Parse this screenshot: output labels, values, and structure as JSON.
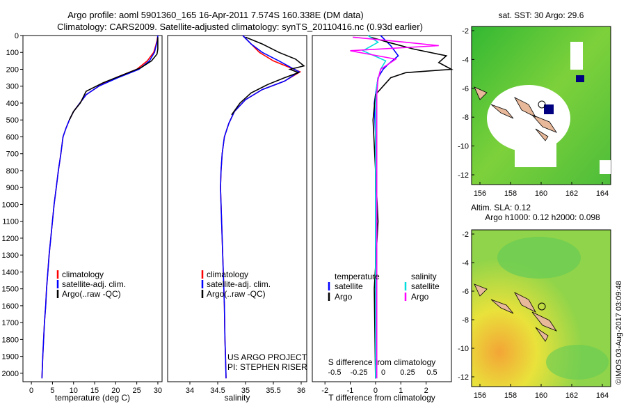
{
  "header": {
    "line1": "Argo profile: aoml 5901360_165 16-Apr-2011 7.574S 160.338E (DM data)",
    "line2": "Climatology: CARS2009. Satellite-adjusted climatology: synTS_20110416.nc (0.93d earlier)"
  },
  "colors": {
    "climatology": "#ff0000",
    "satellite": "#0000ff",
    "argo": "#000000",
    "sal_satellite": "#00dddd",
    "sal_argo": "#ff00ff",
    "land": "#e8b89a"
  },
  "chart_data": [
    {
      "type": "line",
      "xlabel": "temperature (deg C)",
      "ylabel": "",
      "xlim": [
        -2,
        31
      ],
      "ylim": [
        2050,
        0
      ],
      "xticks": [
        0,
        5,
        10,
        15,
        20,
        25,
        30
      ],
      "yticks": [
        0,
        100,
        200,
        300,
        400,
        500,
        600,
        700,
        800,
        900,
        1000,
        1100,
        1200,
        1300,
        1400,
        1500,
        1600,
        1700,
        1800,
        1900,
        2000
      ],
      "legend": [
        "climatology",
        "satellite-adj. clim.",
        "Argo(..raw -QC)"
      ],
      "legend_position": "lower-center",
      "series": [
        {
          "name": "climatology",
          "color": "#ff0000",
          "x": [
            30,
            29.8,
            29.5,
            29,
            27.5,
            25,
            20,
            16,
            13,
            11.5,
            10,
            9,
            8.2,
            7.5,
            7,
            6.4,
            5.9,
            5.4,
            5,
            4.6,
            4.2,
            3.9,
            3.6,
            3.4,
            3.1,
            2.9,
            2.7,
            2.5
          ],
          "y": [
            0,
            30,
            60,
            100,
            150,
            200,
            250,
            300,
            350,
            400,
            450,
            500,
            550,
            600,
            700,
            800,
            900,
            1000,
            1100,
            1200,
            1300,
            1400,
            1500,
            1600,
            1700,
            1800,
            1900,
            2030
          ]
        },
        {
          "name": "satellite-adj. clim.",
          "color": "#0000ff",
          "x": [
            30,
            29.9,
            29.6,
            29.2,
            28,
            25.5,
            20.5,
            16,
            13,
            11.5,
            10,
            9,
            8.2,
            7.5,
            7,
            6.4,
            5.9,
            5.4,
            5,
            4.6,
            4.2,
            3.9,
            3.6,
            3.4,
            3.1,
            2.9,
            2.7,
            2.5
          ],
          "y": [
            0,
            30,
            60,
            100,
            150,
            200,
            250,
            300,
            350,
            400,
            450,
            500,
            550,
            600,
            700,
            800,
            900,
            1000,
            1100,
            1200,
            1300,
            1400,
            1500,
            1600,
            1700,
            1800,
            1900,
            2030
          ]
        },
        {
          "name": "Argo(..raw -QC)",
          "color": "#000000",
          "x": [
            30,
            30,
            30,
            29.8,
            28.5,
            26,
            22,
            17,
            13,
            11.6,
            10,
            9
          ],
          "y": [
            10,
            40,
            80,
            110,
            150,
            190,
            230,
            280,
            330,
            400,
            450,
            500
          ]
        }
      ]
    },
    {
      "type": "line",
      "xlabel": "salinity",
      "xlim": [
        33.6,
        36.1
      ],
      "ylim": [
        2050,
        0
      ],
      "xticks": [
        34,
        34.5,
        35,
        35.5,
        36
      ],
      "legend": [
        "climatology",
        "satellite-adj. clim.",
        "Argo(..raw -QC)"
      ],
      "legend_position": "lower-center",
      "series": [
        {
          "name": "climatology",
          "color": "#ff0000",
          "x": [
            34.95,
            35.1,
            35.25,
            35.5,
            35.8,
            35.98,
            35.7,
            35.3,
            35.0,
            34.8,
            34.7,
            34.62,
            34.58,
            34.56,
            34.55,
            34.56,
            34.57,
            34.58,
            34.6,
            34.61,
            34.62,
            34.63,
            34.64,
            34.65
          ],
          "y": [
            0,
            50,
            100,
            150,
            190,
            215,
            270,
            320,
            380,
            450,
            520,
            600,
            700,
            800,
            900,
            1000,
            1100,
            1200,
            1400,
            1500,
            1600,
            1800,
            1900,
            2030
          ]
        },
        {
          "name": "satellite-adj. clim.",
          "color": "#0000ff",
          "x": [
            34.95,
            35.1,
            35.3,
            35.6,
            35.82,
            35.96,
            35.7,
            35.3,
            35.0,
            34.8,
            34.7,
            34.62,
            34.58,
            34.56,
            34.55,
            34.56,
            34.57,
            34.58,
            34.6,
            34.61,
            34.62,
            34.63,
            34.64,
            34.65
          ],
          "y": [
            0,
            50,
            100,
            150,
            190,
            215,
            270,
            320,
            380,
            450,
            520,
            600,
            700,
            800,
            900,
            1000,
            1100,
            1200,
            1400,
            1500,
            1600,
            1800,
            1900,
            2030
          ]
        },
        {
          "name": "Argo(..raw -QC)",
          "color": "#000000",
          "x": [
            35.0,
            35.3,
            35.6,
            35.9,
            36.05,
            35.8,
            35.95,
            35.7,
            35.4,
            35.1,
            34.9,
            34.75
          ],
          "y": [
            10,
            50,
            100,
            140,
            180,
            200,
            220,
            250,
            290,
            340,
            400,
            470
          ]
        }
      ]
    },
    {
      "type": "line",
      "xlabel": "T difference from climatology",
      "xlabel_top": "S difference from climatology",
      "xlim": [
        -2.5,
        3.0
      ],
      "ylim": [
        2050,
        0
      ],
      "xticks": [
        -2,
        -1,
        0,
        1,
        2
      ],
      "xticks_top": [
        -0.5,
        -0.25,
        0,
        0.25,
        0.5
      ],
      "legend_groups": [
        {
          "title": "temperature",
          "items": [
            "satellite",
            "Argo"
          ]
        },
        {
          "title": "salinity",
          "items": [
            "satellite",
            "Argo"
          ]
        }
      ],
      "legend_position": "lower-center",
      "series": [
        {
          "name": "satellite",
          "color": "#0000ff",
          "x": [
            0.2,
            0.6,
            0.9,
            0.5,
            0.3,
            0.1,
            0.05,
            0,
            -0.05,
            0,
            0,
            0,
            0
          ],
          "y": [
            0,
            60,
            120,
            170,
            200,
            250,
            300,
            350,
            400,
            600,
            900,
            1400,
            2030
          ]
        },
        {
          "name": "Argo",
          "color": "#000000",
          "x": [
            -0.2,
            0.5,
            1.5,
            2.8,
            2.5,
            3.0,
            1.2,
            0.6,
            0.3,
            0,
            -0.1,
            0,
            0.1,
            -0.05,
            0
          ],
          "y": [
            10,
            40,
            80,
            120,
            160,
            200,
            220,
            250,
            300,
            350,
            500,
            800,
            1100,
            1500,
            2030
          ]
        },
        {
          "name": "salinity satellite",
          "color": "#00dddd",
          "x": [
            -0.3,
            0.1,
            -0.5,
            0.4,
            0.2,
            0.1,
            0.05,
            0,
            0,
            0,
            0
          ],
          "y": [
            0,
            40,
            90,
            150,
            200,
            260,
            300,
            400,
            800,
            1400,
            2030
          ]
        },
        {
          "name": "salinity Argo",
          "color": "#ff00ff",
          "x": [
            -0.9,
            1.2,
            2.5,
            -1.0,
            0.8,
            0.2,
            0.1,
            0.05,
            0.05,
            0.05,
            0.05
          ],
          "y": [
            10,
            40,
            60,
            90,
            140,
            200,
            260,
            350,
            800,
            1400,
            2030
          ]
        }
      ]
    }
  ],
  "annotations": {
    "project": "US ARGO PROJECT",
    "pi": "PI: STEPHEN RISER"
  },
  "maps": [
    {
      "title": "sat. SST: 30 Argo: 29.6",
      "xticks": [
        "156",
        "158",
        "160",
        "162",
        "164"
      ],
      "yticks": [
        "-2",
        "-4",
        "-6",
        "-8",
        "-10",
        "-12"
      ]
    },
    {
      "title_line1": "Altim. SLA: 0.12",
      "title_line2": "Argo h1000: 0.12 h2000: 0.098",
      "xticks": [
        "156",
        "158",
        "160",
        "162",
        "164"
      ],
      "yticks": [
        "-2",
        "-4",
        "-6",
        "-8",
        "-10",
        "-12"
      ]
    }
  ],
  "watermark": "©IMOS 03-Aug-2017 03:09:48"
}
